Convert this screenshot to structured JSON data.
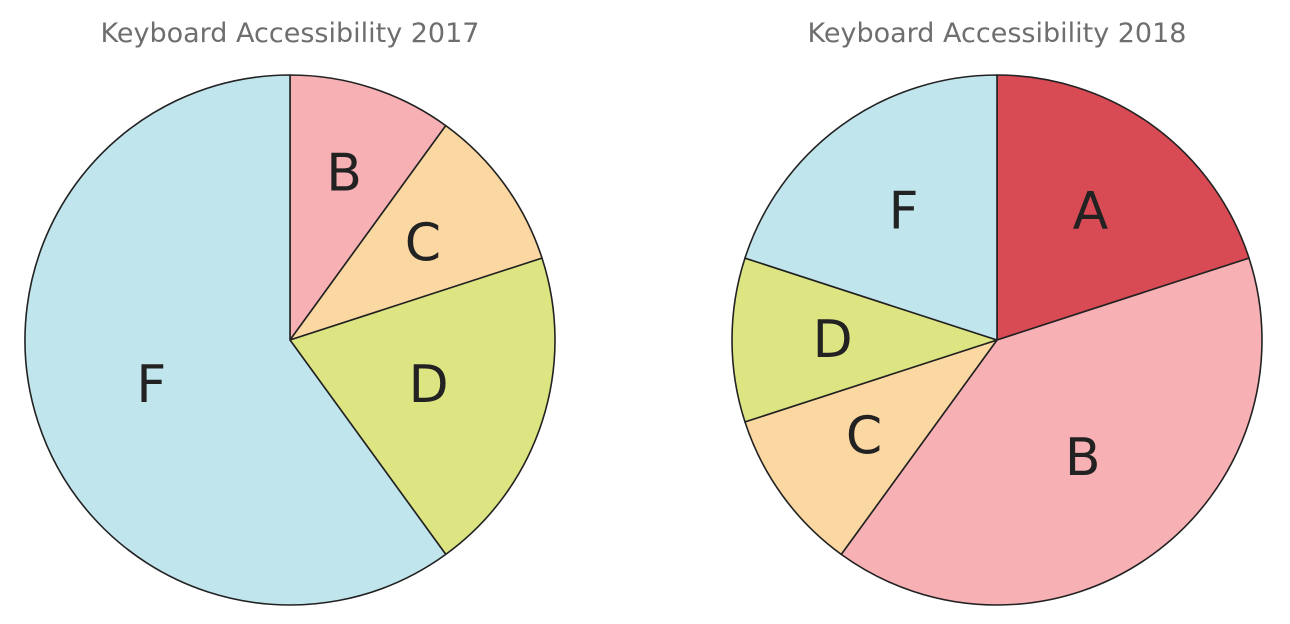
{
  "chart_data": [
    {
      "type": "pie",
      "title": "Keyboard Accessibility 2017",
      "slices": [
        {
          "label": "B",
          "value": 10,
          "color": "#f7b0b4"
        },
        {
          "label": "C",
          "value": 10,
          "color": "#fbd7a2"
        },
        {
          "label": "D",
          "value": 20,
          "color": "#dde583"
        },
        {
          "label": "F",
          "value": 60,
          "color": "#c1e5ed"
        }
      ],
      "start_angle_deg": 0,
      "direction": "clockwise",
      "legend": "none"
    },
    {
      "type": "pie",
      "title": "Keyboard Accessibility 2018",
      "slices": [
        {
          "label": "A",
          "value": 20,
          "color": "#d84a54"
        },
        {
          "label": "B",
          "value": 40,
          "color": "#f7b0b4"
        },
        {
          "label": "C",
          "value": 10,
          "color": "#fbd7a2"
        },
        {
          "label": "D",
          "value": 10,
          "color": "#dde583"
        },
        {
          "label": "F",
          "value": 20,
          "color": "#c1e5ed"
        }
      ],
      "start_angle_deg": 0,
      "direction": "clockwise",
      "legend": "none"
    }
  ]
}
